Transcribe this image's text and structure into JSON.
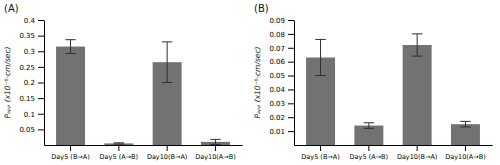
{
  "chart_data": [
    {
      "type": "bar",
      "title": "(A)",
      "categories": [
        "Day5 (B→A)",
        "Day5 (A→B)",
        "Day10(B→A)",
        "Day10(A→B)"
      ],
      "values": [
        0.315,
        0.005,
        0.265,
        0.01
      ],
      "errors": [
        0.022,
        0.002,
        0.065,
        0.008
      ],
      "color": "#727272",
      "ylim": [
        0,
        0.4
      ],
      "yticks": [
        0.05,
        0.1,
        0.15,
        0.2,
        0.25,
        0.3,
        0.35,
        0.4
      ],
      "ylabel": "Pₐₚₚ (x10⁻⁶·cm/sec)",
      "grid": false
    },
    {
      "type": "bar",
      "title": "(B)",
      "categories": [
        "Day5 (B→A)",
        "Day5 (A→B)",
        "Day10(B→A)",
        "Day10(A→B)"
      ],
      "values": [
        0.063,
        0.014,
        0.072,
        0.015
      ],
      "errors": [
        0.013,
        0.002,
        0.008,
        0.002
      ],
      "color": "#727272",
      "ylim": [
        0,
        0.09
      ],
      "yticks": [
        0.01,
        0.02,
        0.03,
        0.04,
        0.05,
        0.06,
        0.07,
        0.08,
        0.09
      ],
      "ylabel": "Pₐₚₚ (x10⁻⁶·cm/sec)",
      "grid": false
    }
  ]
}
